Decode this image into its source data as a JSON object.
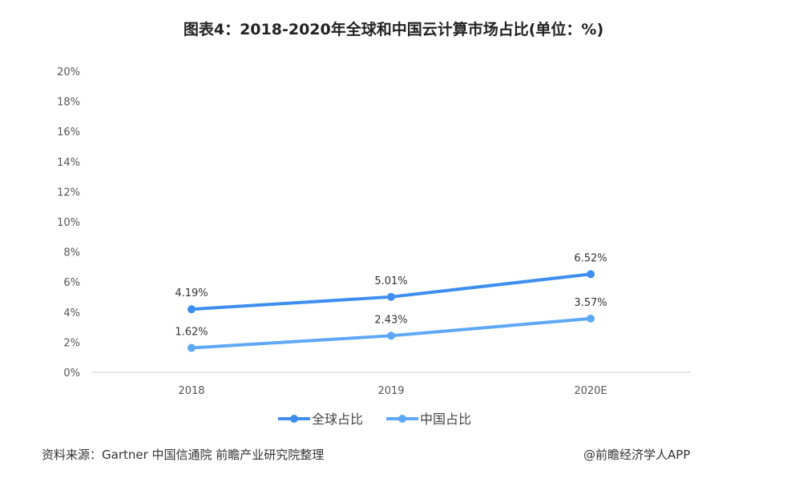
{
  "chart_data": {
    "type": "line",
    "title": "图表4：2018-2020年全球和中国云计算市场占比(单位：%)",
    "categories": [
      "2018",
      "2019",
      "2020E"
    ],
    "series": [
      {
        "name": "全球占比",
        "values": [
          4.19,
          5.01,
          6.52
        ],
        "labels": [
          "4.19%",
          "5.01%",
          "6.52%"
        ],
        "color": "#3d8ef0"
      },
      {
        "name": "中国占比",
        "values": [
          1.62,
          2.43,
          3.57
        ],
        "labels": [
          "1.62%",
          "2.43%",
          "3.57%"
        ],
        "color": "#5ea8f7"
      }
    ],
    "ylim": [
      0,
      20
    ],
    "yticks": [
      "0%",
      "2%",
      "4%",
      "6%",
      "8%",
      "10%",
      "12%",
      "14%",
      "16%",
      "18%",
      "20%"
    ],
    "grid": false,
    "legend": "bottom"
  },
  "footer": {
    "source": "资料来源：Gartner 中国信通院 前瞻产业研究院整理",
    "app": "@前瞻经济学人APP"
  }
}
